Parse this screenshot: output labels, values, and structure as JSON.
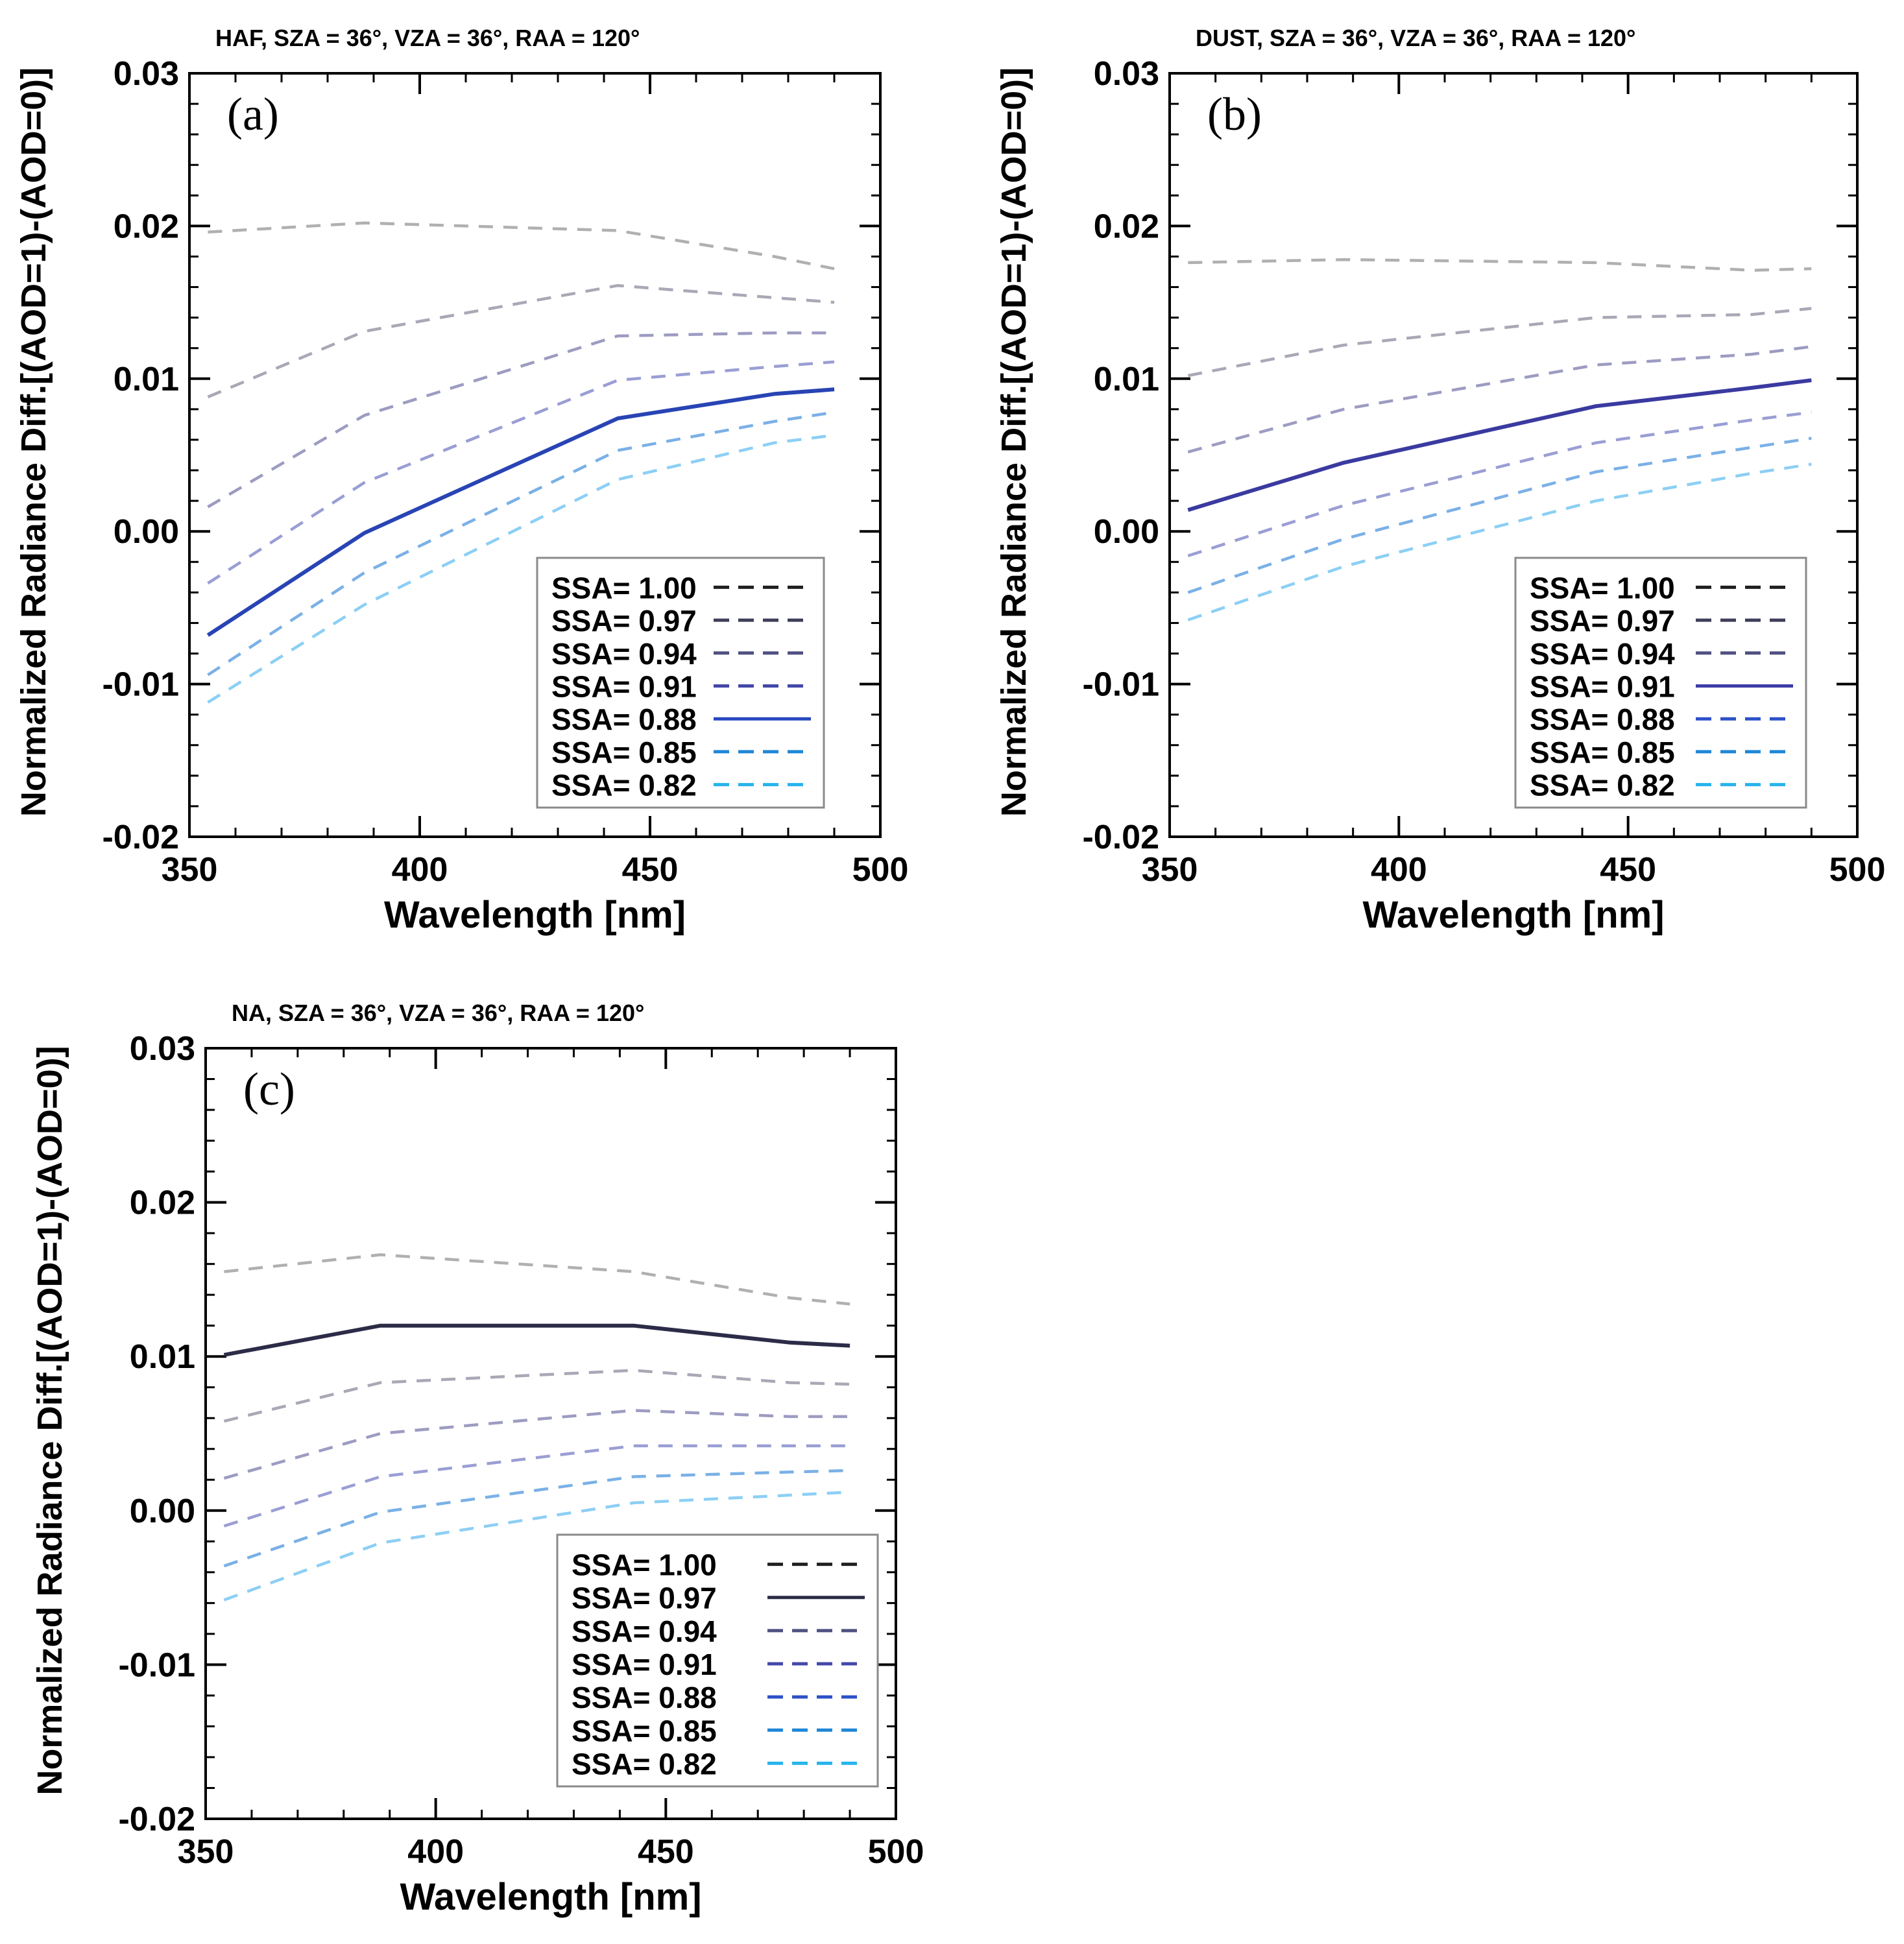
{
  "figure": {
    "description_free": true
  },
  "chart_data": [
    {
      "type": "line",
      "panel_label": "(a)",
      "title": "HAF, SZA = 36°, VZA = 36°, RAA = 120°",
      "xlabel": "Wavelength [nm]",
      "ylabel": "Normalized Radiance Diff.[(AOD=1)-(AOD=0)]",
      "xlim": [
        350,
        500
      ],
      "ylim": [
        -0.02,
        0.03
      ],
      "xticks": [
        350,
        400,
        450,
        500
      ],
      "xtick_labels": [
        "350",
        "400",
        "450",
        "500"
      ],
      "yticks": [
        -0.02,
        -0.01,
        0.0,
        0.01,
        0.02,
        0.03
      ],
      "ytick_labels": [
        "-0.02",
        "-0.01",
        "0.00",
        "0.01",
        "0.02",
        "0.03"
      ],
      "legend_position": "bottom-right",
      "x": [
        354,
        388,
        443,
        477,
        490
      ],
      "series": [
        {
          "name": "SSA= 1.00",
          "color": "#b0b0b0",
          "line_style": "dashed",
          "legend_color": "#202020",
          "values": [
            0.0196,
            0.0202,
            0.0197,
            0.018,
            0.0172
          ]
        },
        {
          "name": "SSA= 0.97",
          "color": "#a8a8b6",
          "line_style": "dashed",
          "legend_color": "#3e3e5a",
          "values": [
            0.0088,
            0.0131,
            0.0161,
            0.0153,
            0.015
          ]
        },
        {
          "name": "SSA= 0.94",
          "color": "#9c9cc2",
          "line_style": "dashed",
          "legend_color": "#505082",
          "values": [
            0.0016,
            0.0076,
            0.0128,
            0.013,
            0.013
          ]
        },
        {
          "name": "SSA= 0.91",
          "color": "#9a9ed4",
          "line_style": "dashed",
          "legend_color": "#4448a8",
          "values": [
            -0.0034,
            0.0032,
            0.0099,
            0.0108,
            0.0111
          ]
        },
        {
          "name": "SSA= 0.88",
          "color": "#2844b4",
          "line_style": "solid",
          "legend_color": "#2848c0",
          "values": [
            -0.0068,
            -0.0001,
            0.0074,
            0.009,
            0.0093
          ]
        },
        {
          "name": "SSA= 0.85",
          "color": "#7ab0e6",
          "line_style": "dashed",
          "legend_color": "#1e86d6",
          "values": [
            -0.0094,
            -0.0027,
            0.0053,
            0.0072,
            0.0078
          ]
        },
        {
          "name": "SSA= 0.82",
          "color": "#8ccff4",
          "line_style": "dashed",
          "legend_color": "#28b4ec",
          "values": [
            -0.0112,
            -0.0048,
            0.0034,
            0.0058,
            0.0063
          ]
        }
      ]
    },
    {
      "type": "line",
      "panel_label": "(b)",
      "title": "DUST, SZA = 36°, VZA = 36°, RAA = 120°",
      "xlabel": "Wavelength [nm]",
      "ylabel": "Normalized Radiance Diff.[(AOD=1)-(AOD=0)]",
      "xlim": [
        350,
        500
      ],
      "ylim": [
        -0.02,
        0.03
      ],
      "xticks": [
        350,
        400,
        450,
        500
      ],
      "xtick_labels": [
        "350",
        "400",
        "450",
        "500"
      ],
      "yticks": [
        -0.02,
        -0.01,
        0.0,
        0.01,
        0.02,
        0.03
      ],
      "ytick_labels": [
        "-0.02",
        "-0.01",
        "0.00",
        "0.01",
        "0.02",
        "0.03"
      ],
      "legend_position": "bottom-right",
      "x": [
        354,
        388,
        443,
        477,
        490
      ],
      "series": [
        {
          "name": "SSA= 1.00",
          "color": "#b0b0b0",
          "line_style": "dashed",
          "legend_color": "#202020",
          "values": [
            0.0176,
            0.0178,
            0.0176,
            0.0171,
            0.0172
          ]
        },
        {
          "name": "SSA= 0.97",
          "color": "#a8a8b6",
          "line_style": "dashed",
          "legend_color": "#3e3e5a",
          "values": [
            0.0102,
            0.0122,
            0.014,
            0.0142,
            0.0146
          ]
        },
        {
          "name": "SSA= 0.94",
          "color": "#9c9cc2",
          "line_style": "dashed",
          "legend_color": "#505082",
          "values": [
            0.0052,
            0.008,
            0.0109,
            0.0116,
            0.0121
          ]
        },
        {
          "name": "SSA= 0.91",
          "color": "#3a3aa0",
          "line_style": "solid",
          "legend_color": "#3c3ca8",
          "values": [
            0.0014,
            0.0045,
            0.0082,
            0.0094,
            0.0099
          ]
        },
        {
          "name": "SSA= 0.88",
          "color": "#9a9ed4",
          "line_style": "dashed",
          "legend_color": "#2c50c8",
          "values": [
            -0.0016,
            0.0017,
            0.0058,
            0.0073,
            0.0078
          ]
        },
        {
          "name": "SSA= 0.85",
          "color": "#7ab0e6",
          "line_style": "dashed",
          "legend_color": "#1e86d6",
          "values": [
            -0.004,
            -0.0005,
            0.0039,
            0.0055,
            0.0061
          ]
        },
        {
          "name": "SSA= 0.82",
          "color": "#8ccff4",
          "line_style": "dashed",
          "legend_color": "#28b4ec",
          "values": [
            -0.0058,
            -0.0023,
            0.002,
            0.0038,
            0.0044
          ]
        }
      ]
    },
    {
      "type": "line",
      "panel_label": "(c)",
      "title": "NA, SZA = 36°, VZA = 36°, RAA = 120°",
      "xlabel": "Wavelength [nm]",
      "ylabel": "Normalized Radiance Diff.[(AOD=1)-(AOD=0)]",
      "xlim": [
        350,
        500
      ],
      "ylim": [
        -0.02,
        0.03
      ],
      "xticks": [
        350,
        400,
        450,
        500
      ],
      "xtick_labels": [
        "350",
        "400",
        "450",
        "500"
      ],
      "yticks": [
        -0.02,
        -0.01,
        0.0,
        0.01,
        0.02,
        0.03
      ],
      "ytick_labels": [
        "-0.02",
        "-0.01",
        "0.00",
        "0.01",
        "0.02",
        "0.03"
      ],
      "legend_position": "bottom-right",
      "x": [
        354,
        388,
        443,
        477,
        490
      ],
      "series": [
        {
          "name": "SSA= 1.00",
          "color": "#b0b0b0",
          "line_style": "dashed",
          "legend_color": "#202020",
          "values": [
            0.0155,
            0.0166,
            0.0155,
            0.0138,
            0.0134
          ]
        },
        {
          "name": "SSA= 0.97",
          "color": "#2c2c48",
          "line_style": "solid",
          "legend_color": "#2c2c48",
          "values": [
            0.0101,
            0.012,
            0.012,
            0.0109,
            0.0107
          ]
        },
        {
          "name": "SSA= 0.94",
          "color": "#a8a8b6",
          "line_style": "dashed",
          "legend_color": "#505082",
          "values": [
            0.0058,
            0.0083,
            0.0091,
            0.0083,
            0.0082
          ]
        },
        {
          "name": "SSA= 0.91",
          "color": "#9c9cc2",
          "line_style": "dashed",
          "legend_color": "#4448a8",
          "values": [
            0.0021,
            0.005,
            0.0065,
            0.0061,
            0.0061
          ]
        },
        {
          "name": "SSA= 0.88",
          "color": "#9a9ed4",
          "line_style": "dashed",
          "legend_color": "#2c50c8",
          "values": [
            -0.001,
            0.0022,
            0.0042,
            0.0042,
            0.0042
          ]
        },
        {
          "name": "SSA= 0.85",
          "color": "#7ab0e6",
          "line_style": "dashed",
          "legend_color": "#1e86d6",
          "values": [
            -0.0036,
            -0.0001,
            0.0022,
            0.0025,
            0.0026
          ]
        },
        {
          "name": "SSA= 0.82",
          "color": "#8ccff4",
          "line_style": "dashed",
          "legend_color": "#28b4ec",
          "values": [
            -0.0058,
            -0.0021,
            0.0005,
            0.001,
            0.0012
          ]
        }
      ]
    }
  ]
}
